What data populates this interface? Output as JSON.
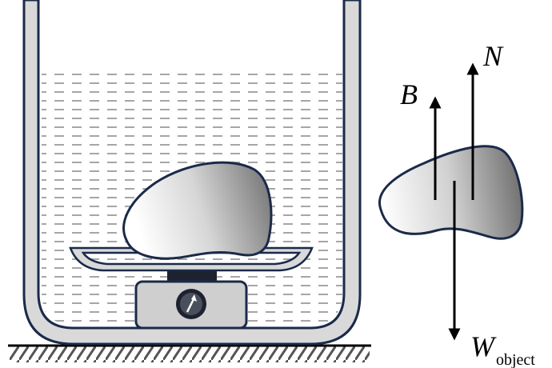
{
  "labels": {
    "buoyant_force": "B",
    "normal_force": "N",
    "weight_symbol": "W",
    "weight_subscript": "object"
  },
  "colors": {
    "outline": "#1b2a4a",
    "container_wall": "#d9d9d9",
    "water_dash": "#a6a6a6",
    "object_light": "#ffffff",
    "object_dark": "#7a7a7a",
    "scale_body": "#cfcfcf",
    "scale_top": "#1e2230",
    "arrow": "#000000"
  },
  "icons": {
    "scale_dial": "gauge-dial-icon",
    "ground": "hatched-ground-icon"
  }
}
